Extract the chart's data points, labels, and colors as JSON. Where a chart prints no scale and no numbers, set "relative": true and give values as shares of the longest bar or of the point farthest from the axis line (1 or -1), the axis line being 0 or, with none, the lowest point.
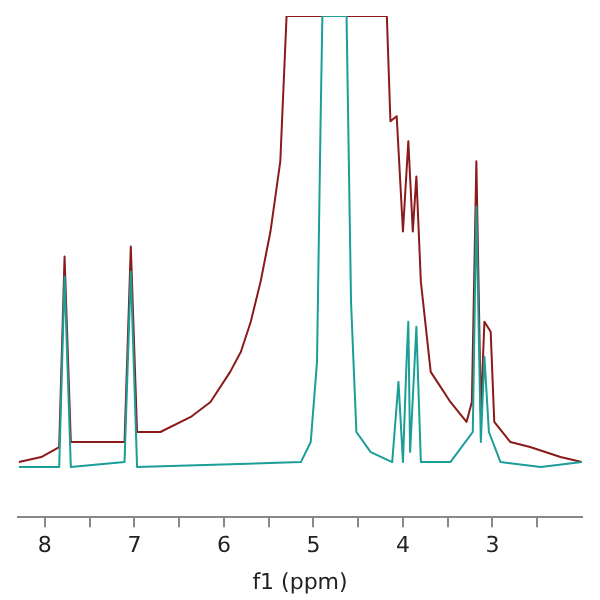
{
  "chart_data": {
    "type": "line",
    "xlabel": "f1 (ppm)",
    "relative": true,
    "grid": false,
    "legend": false,
    "marker": "none",
    "tick_labels": "x",
    "xlim": [
      8.3,
      2.0
    ],
    "xticks": [
      8,
      {
        "value": 7.5,
        "label": null
      },
      7,
      {
        "value": 6.5,
        "label": null
      },
      6,
      {
        "value": 5.5,
        "label": null
      },
      5,
      {
        "value": 4.5,
        "label": null
      },
      4,
      {
        "value": 3.5,
        "label": null
      },
      3,
      {
        "value": 2.5,
        "label": null
      }
    ],
    "series": [
      {
        "color": "#8b1a1a",
        "x": [
          8.29,
          8.04,
          7.84,
          7.78,
          7.71,
          7.38,
          7.11,
          7.04,
          6.97,
          6.71,
          6.37,
          6.15,
          5.93,
          5.81,
          5.7,
          5.59,
          5.48,
          5.37,
          5.3,
          4.18,
          4.14,
          4.07,
          4.0,
          3.94,
          3.89,
          3.85,
          3.8,
          3.69,
          3.58,
          3.47,
          3.29,
          3.23,
          3.18,
          3.13,
          3.09,
          3.02,
          2.98,
          2.8,
          2.58,
          2.24,
          2.0
        ],
        "values": [
          0.11,
          0.12,
          0.14,
          0.52,
          0.15,
          0.15,
          0.15,
          0.54,
          0.17,
          0.17,
          0.2,
          0.23,
          0.29,
          0.33,
          0.39,
          0.47,
          0.57,
          0.71,
          1,
          1,
          0.79,
          0.8,
          0.57,
          0.75,
          0.57,
          0.68,
          0.47,
          0.29,
          0.26,
          0.23,
          0.19,
          0.23,
          0.71,
          0.21,
          0.39,
          0.37,
          0.19,
          0.15,
          0.14,
          0.12,
          0.11
        ]
      },
      {
        "color": "#1a9e96",
        "x": [
          8.29,
          7.84,
          7.78,
          7.71,
          7.11,
          7.04,
          6.97,
          5.14,
          5.03,
          4.96,
          4.92,
          4.9,
          4.63,
          4.58,
          4.52,
          4.36,
          4.12,
          4.05,
          4.0,
          3.96,
          3.94,
          3.92,
          3.85,
          3.8,
          3.47,
          3.22,
          3.18,
          3.13,
          3.09,
          3.04,
          2.91,
          2.46,
          2.0
        ],
        "values": [
          0.1,
          0.1,
          0.48,
          0.1,
          0.11,
          0.49,
          0.1,
          0.11,
          0.15,
          0.31,
          0.79,
          1,
          1,
          0.43,
          0.17,
          0.13,
          0.11,
          0.27,
          0.11,
          0.31,
          0.39,
          0.13,
          0.38,
          0.11,
          0.11,
          0.17,
          0.62,
          0.15,
          0.32,
          0.17,
          0.11,
          0.1,
          0.11
        ]
      }
    ]
  }
}
